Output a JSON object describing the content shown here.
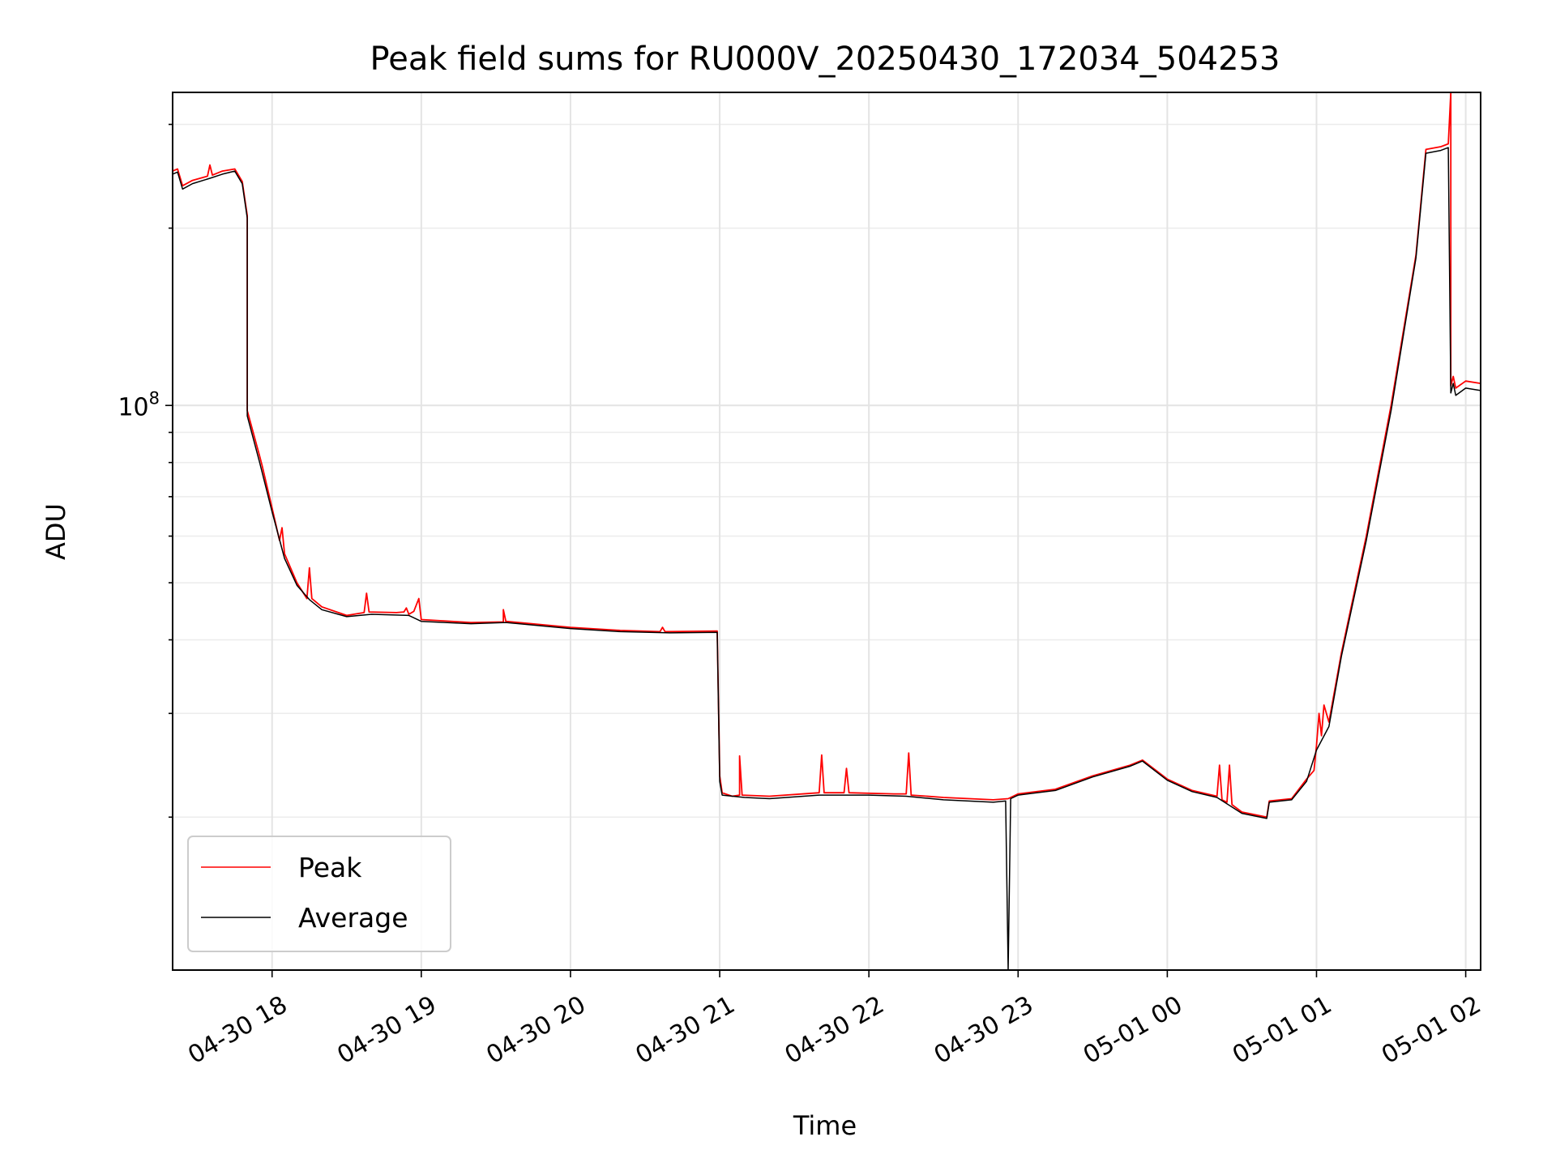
{
  "chart_data": {
    "type": "line",
    "title": "Peak field sums for RU000V_20250430_172034_504253",
    "xlabel": "Time",
    "ylabel": "ADU",
    "yscale": "log",
    "ylim": [
      11000000,
      340000000
    ],
    "xlim": [
      "2025-04-30 17:20",
      "2025-05-01 02:06"
    ],
    "xticks": [
      {
        "time": "2025-04-30 18:00",
        "label": "04-30 18"
      },
      {
        "time": "2025-04-30 19:00",
        "label": "04-30 19"
      },
      {
        "time": "2025-04-30 20:00",
        "label": "04-30 20"
      },
      {
        "time": "2025-04-30 21:00",
        "label": "04-30 21"
      },
      {
        "time": "2025-04-30 22:00",
        "label": "04-30 22"
      },
      {
        "time": "2025-04-30 23:00",
        "label": "04-30 23"
      },
      {
        "time": "2025-05-01 00:00",
        "label": "05-01 00"
      },
      {
        "time": "2025-05-01 01:00",
        "label": "05-01 01"
      },
      {
        "time": "2025-05-01 02:00",
        "label": "05-01 02"
      }
    ],
    "yticks": [
      {
        "value": 100000000,
        "base": "10",
        "exp": "8"
      }
    ],
    "grid": true,
    "legend_position": "lower-left",
    "series": [
      {
        "name": "Peak",
        "color": "#ff0000",
        "points": [
          [
            "2025-04-30 17:20",
            250000000
          ],
          [
            "2025-04-30 17:22",
            252000000
          ],
          [
            "2025-04-30 17:24",
            236000000
          ],
          [
            "2025-04-30 17:28",
            241000000
          ],
          [
            "2025-04-30 17:34",
            245000000
          ],
          [
            "2025-04-30 17:35",
            256000000
          ],
          [
            "2025-04-30 17:36",
            246000000
          ],
          [
            "2025-04-30 17:40",
            250000000
          ],
          [
            "2025-04-30 17:45",
            252000000
          ],
          [
            "2025-04-30 17:48",
            240000000
          ],
          [
            "2025-04-30 17:50",
            210000000
          ],
          [
            "2025-04-30 17:50",
            98000000
          ],
          [
            "2025-04-30 17:55",
            82000000
          ],
          [
            "2025-04-30 17:56",
            79000000
          ],
          [
            "2025-04-30 18:00",
            67000000
          ],
          [
            "2025-04-30 18:03",
            59000000
          ],
          [
            "2025-04-30 18:04",
            62000000
          ],
          [
            "2025-04-30 18:05",
            56000000
          ],
          [
            "2025-04-30 18:10",
            50000000
          ],
          [
            "2025-04-30 18:14",
            47000000
          ],
          [
            "2025-04-30 18:15",
            53000000
          ],
          [
            "2025-04-30 18:16",
            47000000
          ],
          [
            "2025-04-30 18:20",
            45500000
          ],
          [
            "2025-04-30 18:30",
            44000000
          ],
          [
            "2025-04-30 18:37",
            44500000
          ],
          [
            "2025-04-30 18:38",
            48000000
          ],
          [
            "2025-04-30 18:39",
            44600000
          ],
          [
            "2025-04-30 18:50",
            44500000
          ],
          [
            "2025-04-30 18:53",
            44600000
          ],
          [
            "2025-04-30 18:54",
            45300000
          ],
          [
            "2025-04-30 18:55",
            44200000
          ],
          [
            "2025-04-30 18:57",
            44700000
          ],
          [
            "2025-04-30 18:59",
            47000000
          ],
          [
            "2025-04-30 19:00",
            43300000
          ],
          [
            "2025-04-30 19:20",
            42800000
          ],
          [
            "2025-04-30 19:33",
            42900000
          ],
          [
            "2025-04-30 19:33",
            45000000
          ],
          [
            "2025-04-30 19:34",
            43000000
          ],
          [
            "2025-04-30 20:00",
            42000000
          ],
          [
            "2025-04-30 20:20",
            41500000
          ],
          [
            "2025-04-30 20:36",
            41300000
          ],
          [
            "2025-04-30 20:37",
            42000000
          ],
          [
            "2025-04-30 20:38",
            41300000
          ],
          [
            "2025-04-30 20:59",
            41400000
          ],
          [
            "2025-04-30 21:00",
            23500000
          ],
          [
            "2025-04-30 21:01",
            22000000
          ],
          [
            "2025-04-30 21:05",
            21700000
          ],
          [
            "2025-04-30 21:08",
            21800000
          ],
          [
            "2025-04-30 21:08",
            25400000
          ],
          [
            "2025-04-30 21:09",
            21800000
          ],
          [
            "2025-04-30 21:20",
            21700000
          ],
          [
            "2025-04-30 21:40",
            22000000
          ],
          [
            "2025-04-30 21:41",
            25500000
          ],
          [
            "2025-04-30 21:42",
            22000000
          ],
          [
            "2025-04-30 21:50",
            22000000
          ],
          [
            "2025-04-30 21:51",
            24200000
          ],
          [
            "2025-04-30 21:52",
            22000000
          ],
          [
            "2025-04-30 22:10",
            21900000
          ],
          [
            "2025-04-30 22:15",
            21900000
          ],
          [
            "2025-04-30 22:16",
            25700000
          ],
          [
            "2025-04-30 22:17",
            21800000
          ],
          [
            "2025-04-30 22:30",
            21600000
          ],
          [
            "2025-04-30 22:50",
            21400000
          ],
          [
            "2025-04-30 22:56",
            21500000
          ],
          [
            "2025-04-30 23:00",
            21900000
          ],
          [
            "2025-04-30 23:15",
            22300000
          ],
          [
            "2025-04-30 23:30",
            23500000
          ],
          [
            "2025-04-30 23:45",
            24500000
          ],
          [
            "2025-04-30 23:50",
            25000000
          ],
          [
            "2025-05-01 00:00",
            23200000
          ],
          [
            "2025-05-01 00:10",
            22200000
          ],
          [
            "2025-05-01 00:20",
            21700000
          ],
          [
            "2025-05-01 00:21",
            24500000
          ],
          [
            "2025-05-01 00:22",
            21400000
          ],
          [
            "2025-05-01 00:24",
            21200000
          ],
          [
            "2025-05-01 00:25",
            24500000
          ],
          [
            "2025-05-01 00:26",
            21000000
          ],
          [
            "2025-05-01 00:30",
            20400000
          ],
          [
            "2025-05-01 00:40",
            20000000
          ],
          [
            "2025-05-01 00:41",
            21300000
          ],
          [
            "2025-05-01 00:50",
            21500000
          ],
          [
            "2025-05-01 00:56",
            23200000
          ],
          [
            "2025-05-01 00:59",
            24000000
          ],
          [
            "2025-05-01 01:00",
            26500000
          ],
          [
            "2025-05-01 01:01",
            30000000
          ],
          [
            "2025-05-01 01:02",
            27500000
          ],
          [
            "2025-05-01 01:03",
            31000000
          ],
          [
            "2025-05-01 01:05",
            29000000
          ],
          [
            "2025-05-01 01:10",
            38000000
          ],
          [
            "2025-05-01 01:20",
            60000000
          ],
          [
            "2025-05-01 01:30",
            100000000
          ],
          [
            "2025-05-01 01:40",
            180000000
          ],
          [
            "2025-05-01 01:44",
            272000000
          ],
          [
            "2025-05-01 01:50",
            275000000
          ],
          [
            "2025-05-01 01:53",
            278000000
          ],
          [
            "2025-05-01 01:54",
            340000000
          ],
          [
            "2025-05-01 01:54",
            108000000
          ],
          [
            "2025-05-01 01:55",
            112000000
          ],
          [
            "2025-05-01 01:56",
            107000000
          ],
          [
            "2025-05-01 02:00",
            110000000
          ],
          [
            "2025-05-01 02:06",
            109000000
          ]
        ]
      },
      {
        "name": "Average",
        "color": "#000000",
        "points": [
          [
            "2025-04-30 17:20",
            247000000
          ],
          [
            "2025-04-30 17:22",
            249000000
          ],
          [
            "2025-04-30 17:24",
            233000000
          ],
          [
            "2025-04-30 17:28",
            238000000
          ],
          [
            "2025-04-30 17:35",
            243000000
          ],
          [
            "2025-04-30 17:40",
            247000000
          ],
          [
            "2025-04-30 17:45",
            250000000
          ],
          [
            "2025-04-30 17:48",
            238000000
          ],
          [
            "2025-04-30 17:50",
            208000000
          ],
          [
            "2025-04-30 17:50",
            96000000
          ],
          [
            "2025-04-30 17:55",
            80000000
          ],
          [
            "2025-04-30 18:00",
            66000000
          ],
          [
            "2025-04-30 18:05",
            55000000
          ],
          [
            "2025-04-30 18:10",
            49500000
          ],
          [
            "2025-04-30 18:15",
            46800000
          ],
          [
            "2025-04-30 18:20",
            45000000
          ],
          [
            "2025-04-30 18:30",
            43800000
          ],
          [
            "2025-04-30 18:40",
            44200000
          ],
          [
            "2025-04-30 18:55",
            44000000
          ],
          [
            "2025-04-30 19:00",
            43000000
          ],
          [
            "2025-04-30 19:20",
            42600000
          ],
          [
            "2025-04-30 19:34",
            42800000
          ],
          [
            "2025-04-30 20:00",
            41800000
          ],
          [
            "2025-04-30 20:20",
            41300000
          ],
          [
            "2025-04-30 20:40",
            41100000
          ],
          [
            "2025-04-30 20:59",
            41200000
          ],
          [
            "2025-04-30 21:00",
            23000000
          ],
          [
            "2025-04-30 21:01",
            21800000
          ],
          [
            "2025-04-30 21:10",
            21600000
          ],
          [
            "2025-04-30 21:20",
            21500000
          ],
          [
            "2025-04-30 21:40",
            21800000
          ],
          [
            "2025-04-30 22:00",
            21800000
          ],
          [
            "2025-04-30 22:15",
            21700000
          ],
          [
            "2025-04-30 22:30",
            21400000
          ],
          [
            "2025-04-30 22:50",
            21200000
          ],
          [
            "2025-04-30 22:55",
            21300000
          ],
          [
            "2025-04-30 22:56",
            10000000
          ],
          [
            "2025-04-30 22:57",
            21500000
          ],
          [
            "2025-04-30 23:00",
            21800000
          ],
          [
            "2025-04-30 23:15",
            22200000
          ],
          [
            "2025-04-30 23:30",
            23400000
          ],
          [
            "2025-04-30 23:45",
            24400000
          ],
          [
            "2025-04-30 23:50",
            24900000
          ],
          [
            "2025-05-01 00:00",
            23100000
          ],
          [
            "2025-05-01 00:10",
            22100000
          ],
          [
            "2025-05-01 00:20",
            21600000
          ],
          [
            "2025-05-01 00:30",
            20300000
          ],
          [
            "2025-05-01 00:40",
            19900000
          ],
          [
            "2025-05-01 00:41",
            21200000
          ],
          [
            "2025-05-01 00:50",
            21400000
          ],
          [
            "2025-05-01 00:56",
            23000000
          ],
          [
            "2025-05-01 01:00",
            26000000
          ],
          [
            "2025-05-01 01:05",
            28500000
          ],
          [
            "2025-05-01 01:10",
            37500000
          ],
          [
            "2025-05-01 01:20",
            59000000
          ],
          [
            "2025-05-01 01:30",
            98000000
          ],
          [
            "2025-05-01 01:40",
            178000000
          ],
          [
            "2025-05-01 01:44",
            268000000
          ],
          [
            "2025-05-01 01:50",
            271000000
          ],
          [
            "2025-05-01 01:53",
            274000000
          ],
          [
            "2025-05-01 01:54",
            105000000
          ],
          [
            "2025-05-01 01:55",
            109000000
          ],
          [
            "2025-05-01 01:56",
            104000000
          ],
          [
            "2025-05-01 02:00",
            107000000
          ],
          [
            "2025-05-01 02:06",
            106000000
          ]
        ]
      }
    ]
  }
}
